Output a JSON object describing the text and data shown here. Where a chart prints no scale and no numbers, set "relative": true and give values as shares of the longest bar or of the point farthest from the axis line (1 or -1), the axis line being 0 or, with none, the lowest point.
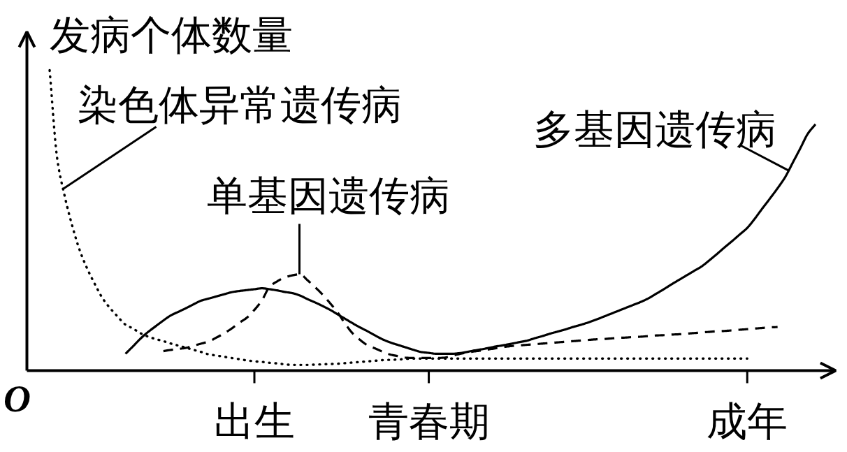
{
  "chart_data": {
    "type": "line",
    "ylabel": "发病个体数量",
    "relative": true,
    "tick_labels": "x",
    "categories": [
      null,
      null,
      null,
      null,
      null,
      null,
      null,
      null,
      null,
      null,
      null,
      null,
      null,
      null,
      null,
      null,
      null,
      null,
      null,
      null,
      null,
      null,
      null,
      null,
      null,
      null,
      null,
      null,
      null,
      null,
      "出生",
      null,
      null,
      null,
      null,
      null,
      null,
      null,
      null,
      null,
      null,
      null,
      null,
      null,
      null,
      null,
      null,
      null,
      null,
      null,
      null,
      null,
      null,
      "青春期",
      null,
      null,
      null,
      null,
      null,
      null,
      null,
      null,
      null,
      null,
      null,
      null,
      null,
      null,
      null,
      null,
      null,
      null,
      null,
      null,
      null,
      null,
      null,
      null,
      null,
      null,
      null,
      null,
      null,
      null,
      null,
      null,
      null,
      null,
      null,
      null,
      null,
      null,
      null,
      null,
      null,
      "成年",
      null,
      null,
      null,
      null,
      null,
      null,
      null,
      null,
      null
    ],
    "annotations": [
      "O"
    ],
    "series": [
      {
        "name": "染色体异常遗传病",
        "color": "#000000",
        "line_style": "dotted",
        "values": [
          null,
          null,
          null,
          1.0,
          0.705,
          0.579,
          0.48,
          0.398,
          0.337,
          0.286,
          0.24,
          0.207,
          0.179,
          0.153,
          0.14,
          0.124,
          0.113,
          0.105,
          0.098,
          0.09,
          0.083,
          0.076,
          0.069,
          0.062,
          0.054,
          0.05,
          0.046,
          0.042,
          0.038,
          0.034,
          0.031,
          0.029,
          0.026,
          0.024,
          0.021,
          0.019,
          0.019,
          0.019,
          0.02,
          0.021,
          0.022,
          0.023,
          0.025,
          0.027,
          0.029,
          0.031,
          0.033,
          0.035,
          0.036,
          0.037,
          0.039,
          0.04,
          0.04,
          0.04,
          0.04,
          0.04,
          0.04,
          0.04,
          0.04,
          0.04,
          0.04,
          0.04,
          0.04,
          0.04,
          0.04,
          0.04,
          0.04,
          0.04,
          0.04,
          0.04,
          0.04,
          0.04,
          0.04,
          0.04,
          0.04,
          0.04,
          0.04,
          0.04,
          0.04,
          0.04,
          0.04,
          0.04,
          0.04,
          0.04,
          0.04,
          0.04,
          0.04,
          0.04,
          0.04,
          0.04,
          0.04,
          0.04,
          0.04,
          0.04,
          0.04,
          0.04,
          null,
          null,
          null,
          null,
          null,
          null,
          null,
          null,
          null
        ]
      },
      {
        "name": "单基因遗传病",
        "color": "#000000",
        "line_style": "dashed",
        "values": [
          null,
          null,
          null,
          null,
          null,
          null,
          null,
          null,
          null,
          null,
          null,
          null,
          null,
          null,
          null,
          null,
          null,
          null,
          0.065,
          0.069,
          0.072,
          0.076,
          0.083,
          0.09,
          0.097,
          0.11,
          0.124,
          0.14,
          0.159,
          0.176,
          0.202,
          0.234,
          0.279,
          0.297,
          0.31,
          0.317,
          0.321,
          0.301,
          0.278,
          0.253,
          0.224,
          0.193,
          0.155,
          0.123,
          0.101,
          0.083,
          0.073,
          0.062,
          0.053,
          0.048,
          0.043,
          0.042,
          0.042,
          0.042,
          0.042,
          0.043,
          0.049,
          0.055,
          0.06,
          0.064,
          0.067,
          0.071,
          0.075,
          0.079,
          0.082,
          0.084,
          0.086,
          0.088,
          0.09,
          0.092,
          0.094,
          0.096,
          0.098,
          0.1,
          0.102,
          0.104,
          0.105,
          0.107,
          0.109,
          0.11,
          0.112,
          0.113,
          0.115,
          0.117,
          0.118,
          0.12,
          0.121,
          0.123,
          0.125,
          0.127,
          0.129,
          0.131,
          0.132,
          0.134,
          0.136,
          0.138,
          0.14,
          0.142,
          0.144,
          0.145,
          null,
          null,
          null,
          null,
          null
        ]
      },
      {
        "name": "多基因遗传病",
        "color": "#000000",
        "line_style": "solid",
        "values": [
          null,
          null,
          null,
          null,
          null,
          null,
          null,
          null,
          null,
          null,
          null,
          null,
          null,
          0.056,
          0.081,
          0.107,
          0.129,
          0.148,
          0.167,
          0.184,
          0.196,
          0.208,
          0.221,
          0.233,
          0.24,
          0.247,
          0.254,
          0.261,
          0.265,
          0.268,
          0.271,
          0.274,
          0.271,
          0.267,
          0.262,
          0.258,
          0.25,
          0.238,
          0.227,
          0.215,
          0.202,
          0.187,
          0.172,
          0.157,
          0.143,
          0.13,
          0.116,
          0.103,
          0.093,
          0.085,
          0.077,
          0.069,
          0.062,
          0.059,
          0.056,
          0.056,
          0.056,
          0.058,
          0.062,
          0.067,
          0.071,
          0.076,
          0.081,
          0.085,
          0.09,
          0.095,
          0.1,
          0.108,
          0.115,
          0.123,
          0.13,
          0.137,
          0.145,
          0.152,
          0.16,
          0.169,
          0.179,
          0.189,
          0.199,
          0.209,
          0.219,
          0.229,
          0.241,
          0.256,
          0.271,
          0.287,
          0.302,
          0.317,
          0.332,
          0.347,
          0.367,
          0.388,
          0.41,
          0.431,
          0.453,
          0.475,
          0.506,
          0.54,
          0.573,
          0.607,
          0.644,
          0.692,
          0.74,
          0.789,
          0.82
        ]
      }
    ]
  }
}
